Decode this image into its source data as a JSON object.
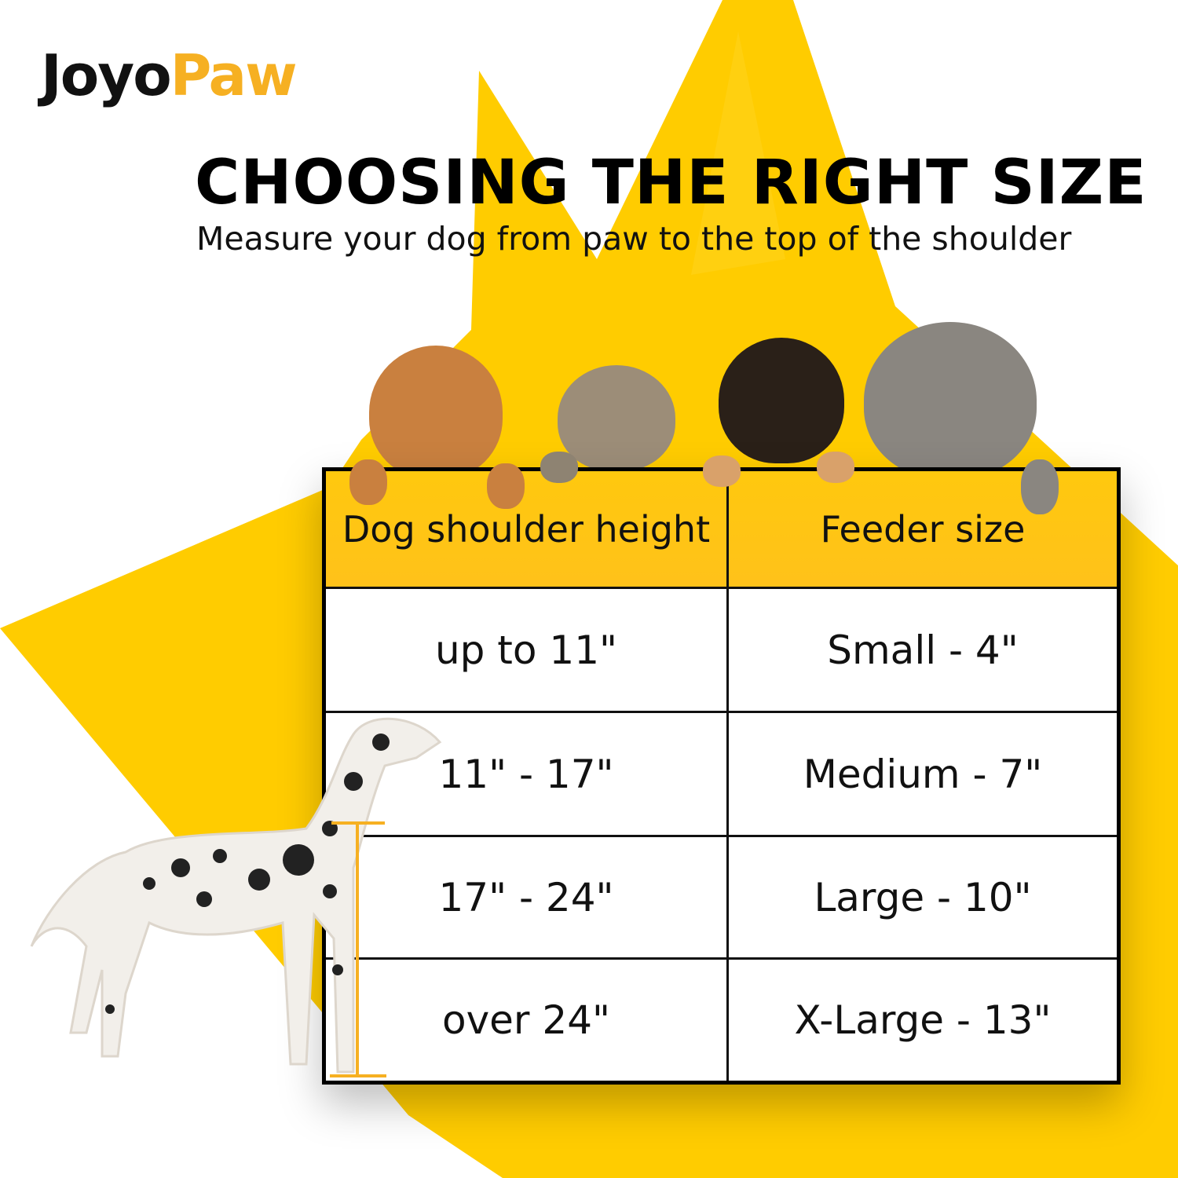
{
  "brand": {
    "logo_text_dark": "Joyo",
    "logo_text_accent": "Paw",
    "accent_color": "#F6B022"
  },
  "header": {
    "title": "CHOOSING THE RIGHT SIZE",
    "subtitle": "Measure your dog from paw to the top of the shoulder"
  },
  "colors": {
    "background_shape": "#FFCC00",
    "table_header": "#FFC414",
    "table_border": "#000000"
  },
  "size_table": {
    "headers": [
      "Dog shoulder height",
      "Feeder size"
    ],
    "rows": [
      {
        "height": "up to 11\"",
        "size": "Small - 4\""
      },
      {
        "height": "11\" - 17\"",
        "size": "Medium - 7\""
      },
      {
        "height": "17\" - 24\"",
        "size": "Large - 10\""
      },
      {
        "height": "over 24\"",
        "size": "X-Large - 13\""
      }
    ]
  }
}
